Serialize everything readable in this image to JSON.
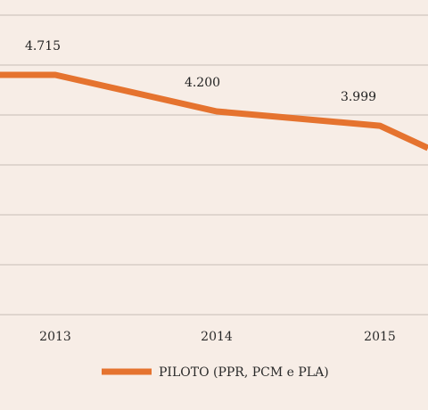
{
  "chart_data": {
    "type": "line",
    "title": "",
    "xlabel": "",
    "ylabel": "",
    "categories": [
      "2013",
      "2014",
      "2015"
    ],
    "series": [
      {
        "name": "PILOTO (PPR, PCM e PLA)",
        "color": "#e5732f",
        "values": [
          4715,
          4200,
          3999
        ],
        "labels": [
          "4.715",
          "4.200",
          "3.999"
        ]
      }
    ],
    "grid": true,
    "legend_position": "bottom"
  }
}
